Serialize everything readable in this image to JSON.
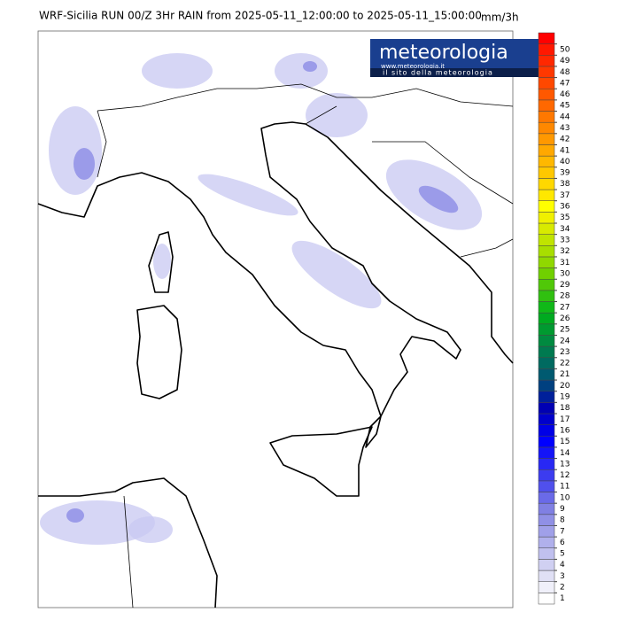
{
  "header": {
    "title": "WRF-Sicilia RUN 00/Z 3Hr RAIN from 2025-05-11_12:00:00 to 2025-05-11_15:00:00",
    "unit": "mm/3h"
  },
  "logo": {
    "name": "meteorologia",
    "url": "www.meteorologia.it",
    "tagline": "il sito della meteorologia"
  },
  "colorbar": {
    "ticks": [
      1,
      2,
      3,
      4,
      5,
      6,
      7,
      8,
      9,
      10,
      11,
      12,
      13,
      14,
      15,
      16,
      17,
      18,
      19,
      20,
      21,
      22,
      23,
      24,
      25,
      26,
      27,
      28,
      29,
      30,
      31,
      32,
      33,
      34,
      35,
      36,
      37,
      38,
      39,
      40,
      41,
      42,
      43,
      44,
      45,
      46,
      47,
      48,
      49,
      50
    ],
    "colors": [
      "#ffffff",
      "#f0f0fa",
      "#e0e0f5",
      "#d0d0f2",
      "#c0c0ef",
      "#b0b0ec",
      "#a0a0e9",
      "#9090e6",
      "#8080e3",
      "#6a6ae8",
      "#5050ec",
      "#3c3cf0",
      "#2828f4",
      "#1414f8",
      "#0000ff",
      "#0000e6",
      "#0000cc",
      "#0000b3",
      "#00209a",
      "#004080",
      "#005a70",
      "#006a60",
      "#007a50",
      "#008a40",
      "#009a30",
      "#00aa20",
      "#10b818",
      "#30c010",
      "#50c808",
      "#70d000",
      "#90d800",
      "#a8de00",
      "#c0e400",
      "#d8ea00",
      "#f0f000",
      "#ffff00",
      "#ffe800",
      "#ffd800",
      "#ffc800",
      "#ffb800",
      "#ffa800",
      "#ff9800",
      "#ff8800",
      "#ff7800",
      "#ff6800",
      "#ff5800",
      "#ff4800",
      "#ff3800",
      "#ff2800",
      "#ff1800",
      "#ff0000"
    ]
  }
}
